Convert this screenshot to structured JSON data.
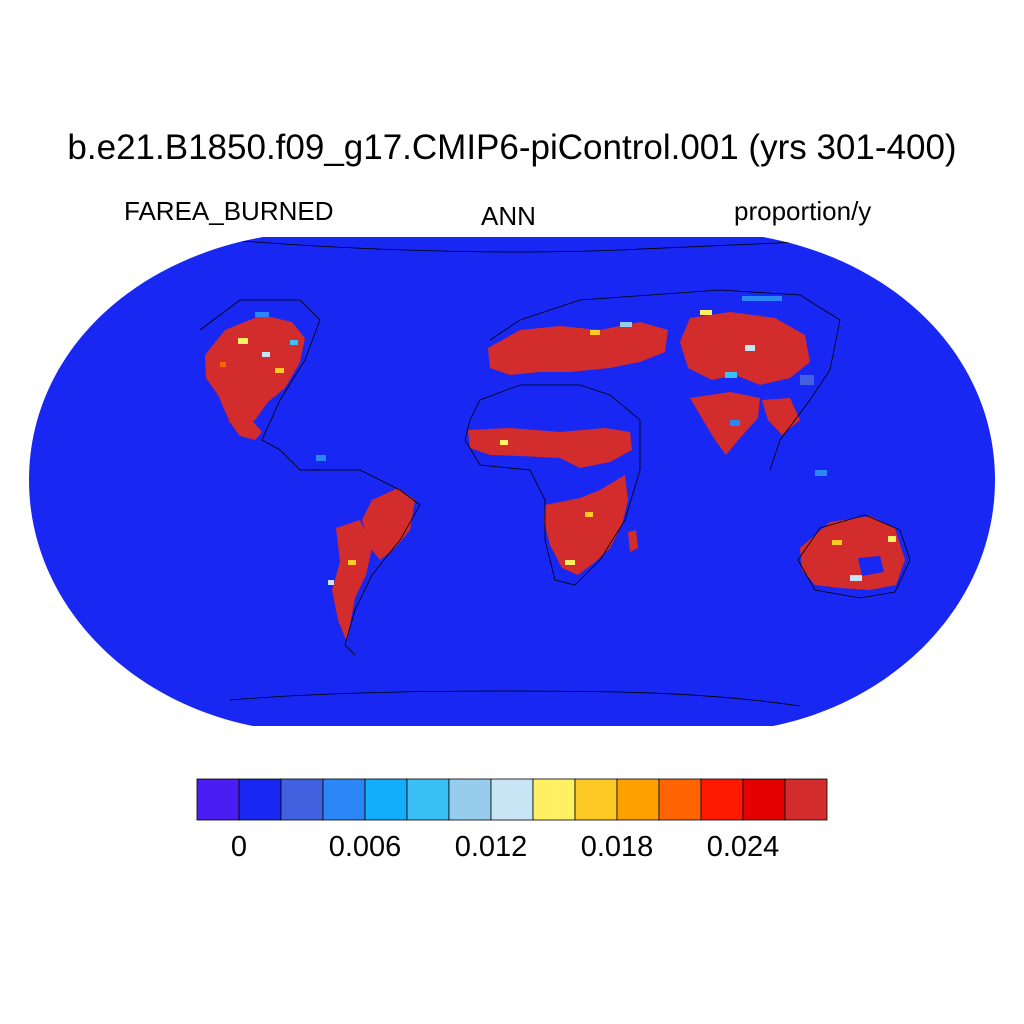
{
  "title": "b.e21.B1850.f09_g17.CMIP6-piControl.001 (yrs 301-400)",
  "variable": "FAREA_BURNED",
  "period": "ANN",
  "units": "proportion/y",
  "colorbar": {
    "colors": [
      "#4a1ef2",
      "#1927f2",
      "#4161e0",
      "#2b86f6",
      "#12aefc",
      "#3ac0f4",
      "#97ccec",
      "#c8e5f6",
      "#fff063",
      "#fec924",
      "#fea000",
      "#fe6400",
      "#fe1a00",
      "#e30000",
      "#d22c2c"
    ],
    "tick_labels": [
      "0",
      "0.006",
      "0.012",
      "0.018",
      "0.024"
    ]
  },
  "map": {
    "projection": "Robinson",
    "ocean_color": "#1927f2",
    "high_fire_color": "#d22c2c",
    "regions_high_burned": [
      "North America west",
      "Mediterranean",
      "Sahel",
      "Southern Africa",
      "South America",
      "India",
      "Central Asia",
      "Australia"
    ]
  }
}
